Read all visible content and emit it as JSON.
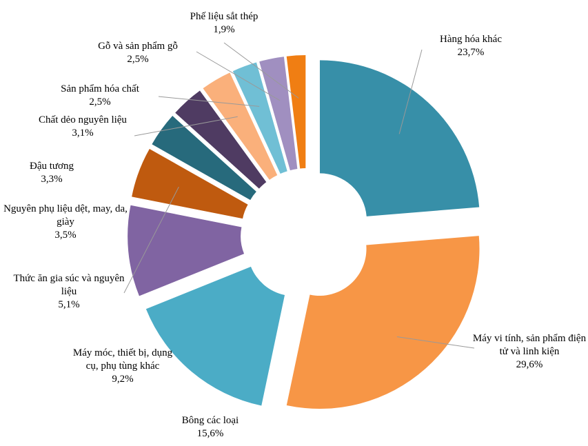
{
  "chart_data": {
    "type": "pie",
    "categories": [
      "Hàng hóa khác",
      "Máy vi tính, sản phẩm điện tử và linh kiện",
      "Bông các loại",
      "Máy móc, thiết bị, dụng cụ, phụ tùng khác",
      "Thức ăn gia súc và nguyên liệu",
      "Nguyên phụ liệu dệt, may, da, giày",
      "Đậu tương",
      "Chất dẻo nguyên liệu",
      "Sản phẩm hóa chất",
      "Gỗ và sản phẩm gỗ",
      "Phế liệu sắt thép"
    ],
    "values": [
      23.7,
      29.6,
      15.6,
      9.2,
      5.1,
      3.5,
      3.3,
      3.1,
      2.5,
      2.5,
      1.9
    ],
    "value_labels": [
      "23,7%",
      "29,6%",
      "15,6%",
      "9,2%",
      "5,1%",
      "3,5%",
      "3,3%",
      "3,1%",
      "2,5%",
      "2,5%",
      "1,9%"
    ],
    "colors": [
      "#378fa8",
      "#f79646",
      "#4bacc6",
      "#8064a2",
      "#bf5a0f",
      "#276a7c",
      "#4f3b62",
      "#fab07b",
      "#70bfd5",
      "#a08fc0",
      "#f07e13"
    ]
  }
}
